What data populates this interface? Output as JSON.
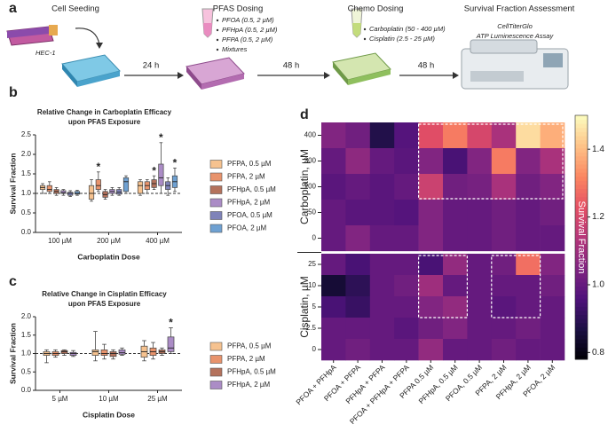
{
  "panel_labels": [
    "a",
    "b",
    "c",
    "d"
  ],
  "workflow": {
    "steps": [
      {
        "title": "Cell Seeding",
        "note": "HEC-1"
      },
      {
        "title": "PFAS Dosing",
        "items": [
          "PFOA (0.5, 2 µM)",
          "PFHpA (0.5, 2 µM)",
          "PFPA (0.5, 2 µM)",
          "Mixtures"
        ]
      },
      {
        "title": "Chemo Dosing",
        "items": [
          "Carboplatin (50 - 400 µM)",
          "Cisplatin (2.5 - 25 µM)"
        ]
      },
      {
        "title": "Survival Fraction Assessment",
        "notes": [
          "CellTiterGlo",
          "ATP Luminescence Assay"
        ]
      }
    ],
    "intervals": [
      "24 h",
      "48 h",
      "48 h"
    ]
  },
  "chart_data": [
    {
      "type": "box",
      "title": [
        "Relative Change in Carboplatin Efficacy",
        "upon PFAS Exposure"
      ],
      "y_label": "Survival Fraction",
      "x_label": "Carboplatin Dose",
      "categories": [
        "100 µM",
        "200 µM",
        "400 µM"
      ],
      "ylim": [
        0,
        2.5
      ],
      "yticks": [
        {
          "value": 0,
          "label": "0.0"
        },
        0.5,
        {
          "value": 1,
          "label": "1.0"
        },
        1.5,
        {
          "value": 2,
          "label": "2.0"
        },
        2.5
      ],
      "reference_line": 1,
      "series": [
        {
          "name": "PFPA, 0.5 µM",
          "color": "#f6c28f",
          "values": [
            {
              "min": 1.0,
              "q1": 1.1,
              "median": 1.15,
              "q3": 1.2,
              "max": 1.25
            },
            {
              "min": 0.8,
              "q1": 0.85,
              "median": 1.0,
              "q3": 1.2,
              "max": 1.35
            },
            {
              "min": 0.95,
              "q1": 1.0,
              "median": 1.2,
              "q3": 1.3,
              "max": 1.35
            }
          ]
        },
        {
          "name": "PFPA, 2 µM",
          "color": "#e8936c",
          "values": [
            {
              "min": 1.0,
              "q1": 1.05,
              "median": 1.1,
              "q3": 1.2,
              "max": 1.3
            },
            {
              "min": 1.05,
              "q1": 1.1,
              "median": 1.2,
              "q3": 1.35,
              "max": 1.55
            },
            {
              "min": 1.0,
              "q1": 1.1,
              "median": 1.2,
              "q3": 1.3,
              "max": 1.35
            }
          ]
        },
        {
          "name": "PFHpA, 0.5 µM",
          "color": "#b4725c",
          "values": [
            {
              "min": 0.95,
              "q1": 1.0,
              "median": 1.05,
              "q3": 1.1,
              "max": 1.15
            },
            {
              "min": 0.85,
              "q1": 0.9,
              "median": 0.97,
              "q3": 1.05,
              "max": 1.1
            },
            {
              "min": 1.1,
              "q1": 1.15,
              "median": 1.25,
              "q3": 1.35,
              "max": 1.45
            }
          ]
        },
        {
          "name": "PFHpA, 2 µM",
          "color": "#ab8cc6",
          "values": [
            {
              "min": 0.95,
              "q1": 1.0,
              "median": 1.02,
              "q3": 1.07,
              "max": 1.1
            },
            {
              "min": 0.95,
              "q1": 1.0,
              "median": 1.05,
              "q3": 1.1,
              "max": 1.15
            },
            {
              "min": 1.0,
              "q1": 1.2,
              "median": 1.4,
              "q3": 1.75,
              "max": 2.3
            }
          ]
        },
        {
          "name": "PFOA, 0.5 µM",
          "color": "#7f83b9",
          "values": [
            {
              "min": 0.92,
              "q1": 0.95,
              "median": 1.0,
              "q3": 1.03,
              "max": 1.07
            },
            {
              "min": 0.95,
              "q1": 0.98,
              "median": 1.03,
              "q3": 1.1,
              "max": 1.15
            },
            {
              "min": 0.95,
              "q1": 1.1,
              "median": 1.2,
              "q3": 1.3,
              "max": 1.4
            }
          ]
        },
        {
          "name": "PFOA, 2 µM",
          "color": "#6fa1d2",
          "values": [
            {
              "min": 0.95,
              "q1": 0.98,
              "median": 1.0,
              "q3": 1.05,
              "max": 1.08
            },
            {
              "min": 1.0,
              "q1": 1.05,
              "median": 1.3,
              "q3": 1.4,
              "max": 1.45
            },
            {
              "min": 1.05,
              "q1": 1.15,
              "median": 1.3,
              "q3": 1.45,
              "max": 1.65
            }
          ]
        }
      ],
      "annotations": [
        {
          "text": "*",
          "category": 1,
          "series": 1
        },
        {
          "text": "*",
          "category": 2,
          "series": 2
        },
        {
          "text": "*",
          "category": 2,
          "series": 3
        },
        {
          "text": "*",
          "category": 2,
          "series": 5
        }
      ]
    },
    {
      "type": "box",
      "title": [
        "Relative Change in Cisplatin Efficacy",
        "upon PFAS Exposure"
      ],
      "y_label": "Survival Fraction",
      "x_label": "Cisplatin Dose",
      "categories": [
        "5 µM",
        "10 µM",
        "25 µM"
      ],
      "ylim": [
        0,
        2
      ],
      "yticks": [
        {
          "value": 0,
          "label": "0.0"
        },
        0.5,
        {
          "value": 1,
          "label": "1.0"
        },
        1.5,
        {
          "value": 2,
          "label": "2.0"
        }
      ],
      "reference_line": 1,
      "series": [
        {
          "name": "PFPA, 0.5 µM",
          "color": "#f6c28f",
          "values": [
            {
              "min": 0.75,
              "q1": 0.95,
              "median": 1.0,
              "q3": 1.05,
              "max": 1.1
            },
            {
              "min": 0.8,
              "q1": 0.95,
              "median": 1.05,
              "q3": 1.1,
              "max": 1.6
            },
            {
              "min": 0.8,
              "q1": 0.9,
              "median": 1.05,
              "q3": 1.2,
              "max": 1.35
            }
          ]
        },
        {
          "name": "PFPA, 2 µM",
          "color": "#e8936c",
          "values": [
            {
              "min": 0.9,
              "q1": 0.95,
              "median": 1.0,
              "q3": 1.05,
              "max": 1.1
            },
            {
              "min": 0.85,
              "q1": 0.95,
              "median": 1.0,
              "q3": 1.1,
              "max": 1.25
            },
            {
              "min": 0.85,
              "q1": 0.95,
              "median": 1.05,
              "q3": 1.15,
              "max": 1.3
            }
          ]
        },
        {
          "name": "PFHpA, 0.5 µM",
          "color": "#b4725c",
          "values": [
            {
              "min": 0.95,
              "q1": 1.0,
              "median": 1.05,
              "q3": 1.08,
              "max": 1.1
            },
            {
              "min": 0.85,
              "q1": 0.92,
              "median": 1.0,
              "q3": 1.05,
              "max": 1.1
            },
            {
              "min": 0.95,
              "q1": 1.0,
              "median": 1.05,
              "q3": 1.1,
              "max": 1.15
            }
          ]
        },
        {
          "name": "PFHpA, 2 µM",
          "color": "#ab8cc6",
          "values": [
            {
              "min": 0.92,
              "q1": 0.95,
              "median": 1.0,
              "q3": 1.03,
              "max": 1.08
            },
            {
              "min": 0.95,
              "q1": 0.98,
              "median": 1.02,
              "q3": 1.1,
              "max": 1.15
            },
            {
              "min": 1.0,
              "q1": 1.05,
              "median": 1.15,
              "q3": 1.45,
              "max": 1.7
            }
          ]
        }
      ],
      "annotations": [
        {
          "text": "*",
          "category": 2,
          "series": 3
        }
      ]
    },
    {
      "type": "heatmap",
      "colormap": "magma",
      "columns": [
        "PFOA + PFHpA",
        "PFOA + PFPA",
        "PFHpA + PFPA",
        "PFOA + PFHpA + PFPA",
        "PFPA 0.5 µM",
        "PFHpA, 0.5 µM",
        "PFOA, 0.5 µM",
        "PFPA, 2 µM",
        "PFHpA, 2 µM",
        "PFOA, 2 µM"
      ],
      "groups": [
        {
          "label": "Carboplatin, µM",
          "rows": [
            400,
            200,
            100,
            50,
            0
          ],
          "values": [
            [
              1.05,
              1.02,
              0.88,
              0.97,
              1.22,
              1.3,
              1.2,
              1.12,
              1.45,
              1.38
            ],
            [
              1.0,
              1.07,
              1.0,
              0.98,
              1.05,
              0.95,
              1.05,
              1.3,
              1.05,
              1.12
            ],
            [
              0.98,
              1.0,
              0.98,
              1.0,
              1.18,
              1.02,
              1.03,
              1.12,
              1.02,
              1.05
            ],
            [
              1.0,
              0.98,
              0.98,
              0.97,
              1.05,
              1.0,
              1.0,
              1.02,
              1.0,
              1.02
            ],
            [
              1.0,
              1.05,
              1.0,
              1.0,
              1.05,
              1.0,
              1.0,
              1.02,
              1.0,
              1.0
            ]
          ]
        },
        {
          "label": "Cisplatin, µM",
          "rows": [
            25,
            10,
            5,
            2.5,
            0
          ],
          "values": [
            [
              1.0,
              0.95,
              1.0,
              1.0,
              0.95,
              1.08,
              1.0,
              1.02,
              1.28,
              1.05
            ],
            [
              0.85,
              0.9,
              1.0,
              1.02,
              1.1,
              1.0,
              1.0,
              1.0,
              1.0,
              1.02
            ],
            [
              0.95,
              0.92,
              1.0,
              1.0,
              1.05,
              1.08,
              1.0,
              0.98,
              1.0,
              1.0
            ],
            [
              1.0,
              1.0,
              1.0,
              0.98,
              1.02,
              1.05,
              1.0,
              1.0,
              1.02,
              1.0
            ],
            [
              1.0,
              1.02,
              1.0,
              1.0,
              1.08,
              1.0,
              1.0,
              1.02,
              1.0,
              1.0
            ]
          ]
        }
      ],
      "colorbar": {
        "label": "Survival Fraction",
        "lim": [
          0.78,
          1.5
        ],
        "ticks": [
          0.8,
          {
            "value": 1,
            "label": "1.0"
          },
          1.2,
          1.4
        ]
      }
    }
  ]
}
